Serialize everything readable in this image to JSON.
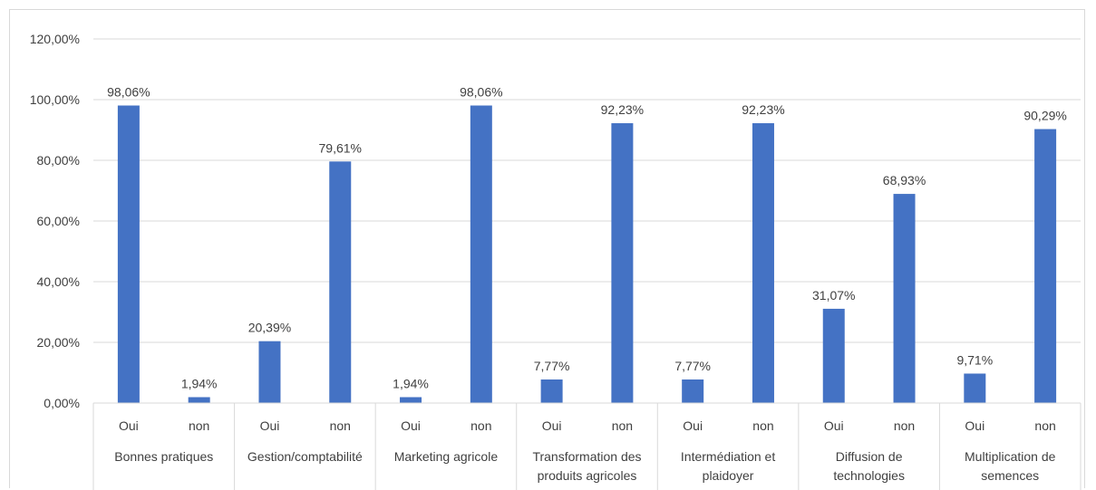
{
  "chart_data": {
    "type": "bar",
    "title": "",
    "xlabel": "",
    "ylabel": "",
    "ylim": [
      0,
      120
    ],
    "y_ticks": [
      "0,00%",
      "20,00%",
      "40,00%",
      "60,00%",
      "80,00%",
      "100,00%",
      "120,00%"
    ],
    "y_tick_values": [
      0,
      20,
      40,
      60,
      80,
      100,
      120
    ],
    "grid": true,
    "legend": "none",
    "bar_color": "#4472C4",
    "groups": [
      {
        "label": "Bonnes pratiques",
        "lines": [
          "Bonnes pratiques"
        ]
      },
      {
        "label": "Gestion/comptabilité",
        "lines": [
          "Gestion/comptabilité"
        ]
      },
      {
        "label": "Marketing agricole",
        "lines": [
          "Marketing agricole"
        ]
      },
      {
        "label": "Transformation des produits agricoles",
        "lines": [
          "Transformation des",
          "produits agricoles"
        ]
      },
      {
        "label": "Intermédiation et plaidoyer",
        "lines": [
          "Intermédiation et",
          "plaidoyer"
        ]
      },
      {
        "label": "Diffusion de technologies",
        "lines": [
          "Diffusion de",
          "technologies"
        ]
      },
      {
        "label": "Multiplication de semences",
        "lines": [
          "Multiplication de",
          "semences"
        ]
      }
    ],
    "bars": [
      {
        "group": 0,
        "category": "Oui",
        "value": 98.06,
        "label": "98,06%"
      },
      {
        "group": 0,
        "category": "non",
        "value": 1.94,
        "label": "1,94%"
      },
      {
        "group": 1,
        "category": "Oui",
        "value": 20.39,
        "label": "20,39%"
      },
      {
        "group": 1,
        "category": "non",
        "value": 79.61,
        "label": "79,61%"
      },
      {
        "group": 2,
        "category": "Oui",
        "value": 1.94,
        "label": "1,94%"
      },
      {
        "group": 2,
        "category": "non",
        "value": 98.06,
        "label": "98,06%"
      },
      {
        "group": 3,
        "category": "Oui",
        "value": 7.77,
        "label": "7,77%"
      },
      {
        "group": 3,
        "category": "non",
        "value": 92.23,
        "label": "92,23%"
      },
      {
        "group": 4,
        "category": "Oui",
        "value": 7.77,
        "label": "7,77%"
      },
      {
        "group": 4,
        "category": "non",
        "value": 92.23,
        "label": "92,23%"
      },
      {
        "group": 5,
        "category": "Oui",
        "value": 31.07,
        "label": "31,07%"
      },
      {
        "group": 5,
        "category": "non",
        "value": 68.93,
        "label": "68,93%"
      },
      {
        "group": 6,
        "category": "Oui",
        "value": 9.71,
        "label": "9,71%"
      },
      {
        "group": 6,
        "category": "non",
        "value": 90.29,
        "label": "90,29%"
      }
    ]
  }
}
